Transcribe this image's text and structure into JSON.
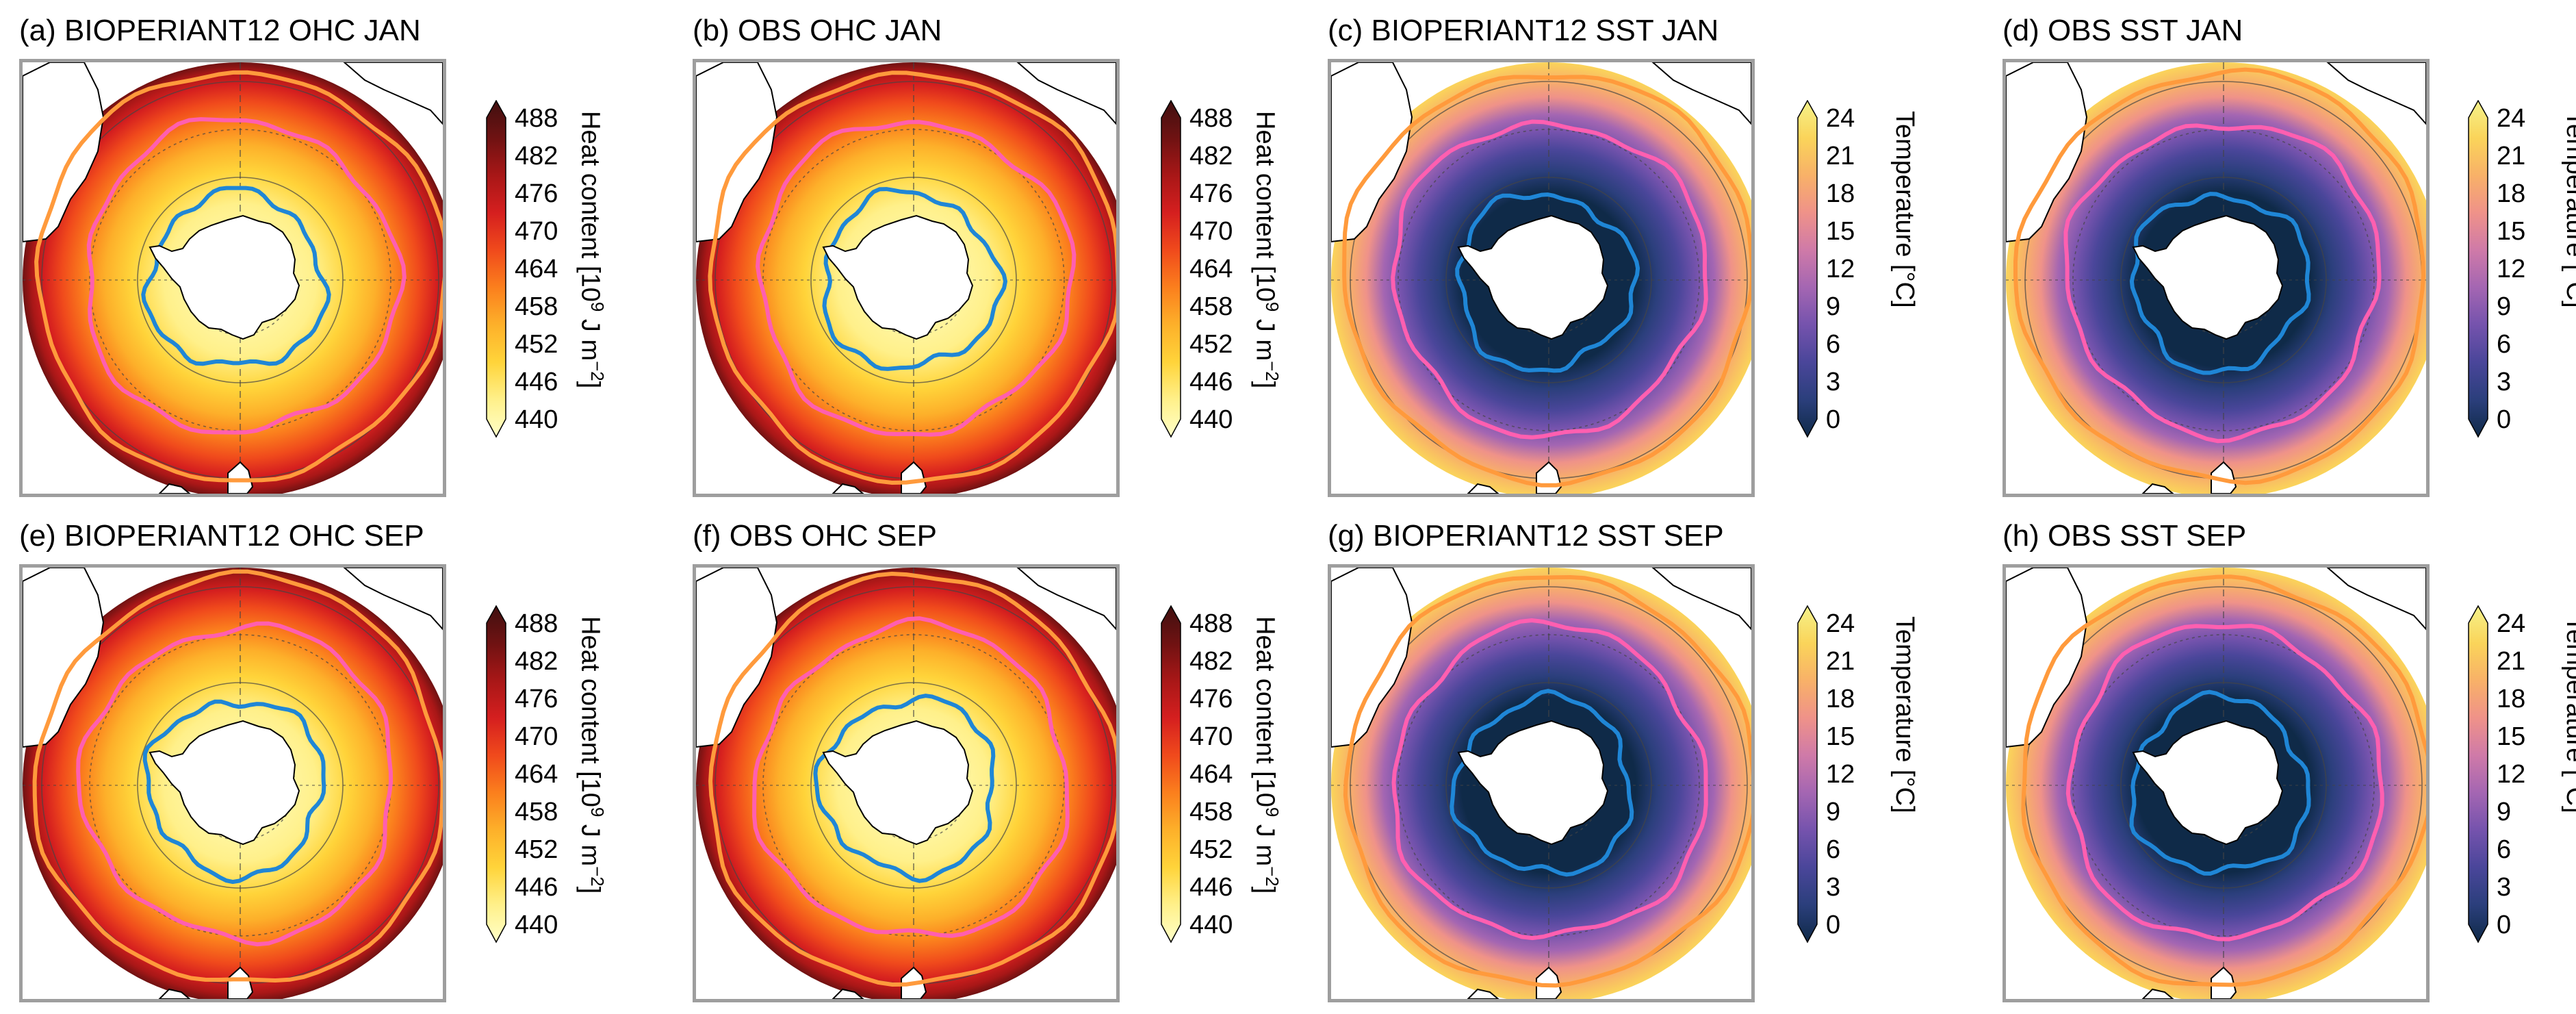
{
  "colors": {
    "ohc_ramp": [
      "#ffffc8",
      "#fff08a",
      "#ffd43a",
      "#fdb02a",
      "#fb7f1d",
      "#f04a1c",
      "#d51f1f",
      "#a81717",
      "#6f1212",
      "#401010"
    ],
    "sst_ramp": [
      "#0f2a48",
      "#2b3f7c",
      "#4a469a",
      "#7553ad",
      "#a466b2",
      "#cf7aa8",
      "#ef9289",
      "#f8b168",
      "#fad45a",
      "#f5f28a"
    ],
    "contour_blue": "#1f86d6",
    "contour_pink": "#ff5fb0",
    "contour_orange": "#ff9a3c",
    "land": "#ffffff",
    "frame": "#9e9e9e"
  },
  "colorbars": {
    "ohc": {
      "label_main": "Heat content [10",
      "label_sup": "9",
      "label_mid": " J m",
      "label_sup2": "−2",
      "label_end": "]",
      "ticks": [
        "488",
        "482",
        "476",
        "470",
        "464",
        "458",
        "452",
        "446",
        "440"
      ]
    },
    "sst": {
      "label": "Temperature [°C]",
      "ticks": [
        "24",
        "21",
        "18",
        "15",
        "12",
        "9",
        "6",
        "3",
        "0"
      ]
    }
  },
  "panels": [
    {
      "title": "(a) BIOPERIANT12 OHC JAN",
      "variable": "ohc",
      "source": "BIOPERIANT12",
      "month": "JAN"
    },
    {
      "title": "(b) OBS OHC JAN",
      "variable": "ohc",
      "source": "OBS",
      "month": "JAN"
    },
    {
      "title": "(c) BIOPERIANT12 SST JAN",
      "variable": "sst",
      "source": "BIOPERIANT12",
      "month": "JAN"
    },
    {
      "title": "(d) OBS SST JAN",
      "variable": "sst",
      "source": "OBS",
      "month": "JAN"
    },
    {
      "title": "(e) BIOPERIANT12 OHC SEP",
      "variable": "ohc",
      "source": "BIOPERIANT12",
      "month": "SEP"
    },
    {
      "title": "(f) OBS OHC SEP",
      "variable": "ohc",
      "source": "OBS",
      "month": "SEP"
    },
    {
      "title": "(g) BIOPERIANT12 SST SEP",
      "variable": "sst",
      "source": "BIOPERIANT12",
      "month": "SEP"
    },
    {
      "title": "(h) OBS SST SEP",
      "variable": "sst",
      "source": "OBS",
      "month": "SEP"
    }
  ]
}
